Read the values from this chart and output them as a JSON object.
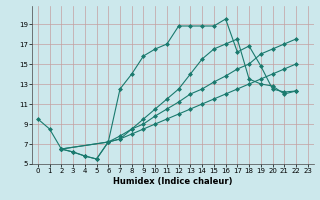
{
  "xlabel": "Humidex (Indice chaleur)",
  "bg_color": "#cce8ec",
  "grid_color": "#c4a0a0",
  "line_color": "#1a7a6e",
  "xlim": [
    -0.5,
    23.5
  ],
  "ylim": [
    5,
    20
  ],
  "yticks": [
    5,
    7,
    9,
    11,
    13,
    15,
    17,
    19
  ],
  "xticks": [
    0,
    1,
    2,
    3,
    4,
    5,
    6,
    7,
    8,
    9,
    10,
    11,
    12,
    13,
    14,
    15,
    16,
    17,
    18,
    19,
    20,
    21,
    22,
    23
  ],
  "lines": [
    {
      "x": [
        0,
        1,
        2,
        3,
        4,
        5,
        6,
        7,
        8,
        9,
        10,
        11,
        12,
        13,
        14,
        15,
        16,
        17,
        18,
        19,
        20,
        21,
        22
      ],
      "y": [
        9.5,
        8.5,
        6.5,
        6.2,
        5.8,
        5.5,
        7.2,
        12.5,
        14.0,
        15.8,
        16.5,
        17.0,
        18.8,
        18.8,
        18.8,
        18.8,
        19.5,
        16.2,
        16.8,
        14.8,
        12.5,
        12.2,
        12.3
      ]
    },
    {
      "x": [
        2,
        3,
        4,
        5,
        6,
        7,
        8,
        9,
        10,
        11,
        12,
        13,
        14,
        15,
        16,
        17,
        18,
        19,
        20,
        21,
        22
      ],
      "y": [
        6.5,
        6.2,
        5.8,
        5.5,
        7.2,
        7.5,
        8.5,
        9.5,
        10.5,
        11.5,
        12.5,
        14.0,
        15.5,
        16.5,
        17.0,
        17.5,
        13.5,
        13.0,
        12.8,
        12.0,
        12.3
      ]
    },
    {
      "x": [
        2,
        6,
        7,
        8,
        9,
        10,
        11,
        12,
        13,
        14,
        15,
        16,
        17,
        18,
        19,
        20,
        21,
        22
      ],
      "y": [
        6.5,
        7.2,
        7.8,
        8.5,
        9.0,
        9.8,
        10.5,
        11.2,
        12.0,
        12.5,
        13.2,
        13.8,
        14.5,
        15.0,
        16.0,
        16.5,
        17.0,
        17.5
      ]
    },
    {
      "x": [
        2,
        6,
        7,
        8,
        9,
        10,
        11,
        12,
        13,
        14,
        15,
        16,
        17,
        18,
        19,
        20,
        21,
        22
      ],
      "y": [
        6.5,
        7.2,
        7.5,
        8.0,
        8.5,
        9.0,
        9.5,
        10.0,
        10.5,
        11.0,
        11.5,
        12.0,
        12.5,
        13.0,
        13.5,
        14.0,
        14.5,
        15.0
      ]
    }
  ]
}
